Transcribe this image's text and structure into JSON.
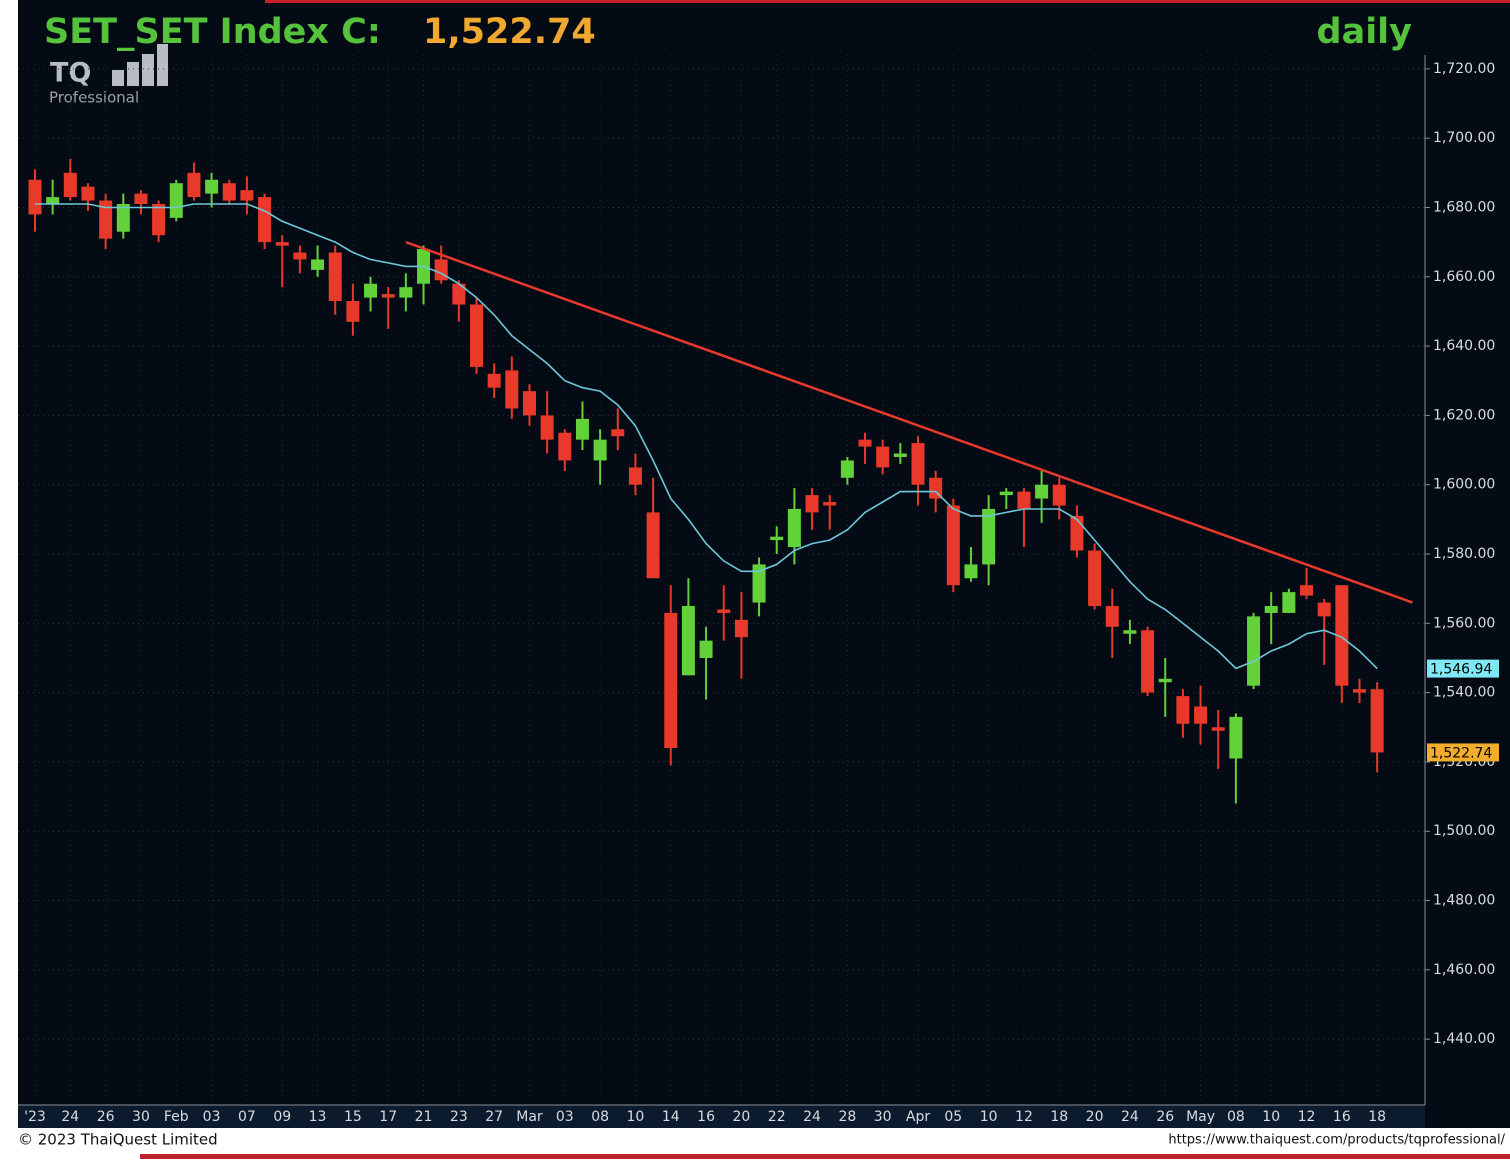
{
  "chart_data": {
    "type": "candlestick",
    "title": "SET_SET Index C:",
    "title_value": "1,522.74",
    "interval": "daily",
    "logo": {
      "text": "TQ",
      "subtitle": "Professional"
    },
    "copyright": "© 2023 ThaiQuest Limited",
    "url": "https://www.thaiquest.com/products/tqprofessional/",
    "categories": [
      "'23",
      null,
      "24",
      null,
      "26",
      null,
      "30",
      null,
      "Feb",
      null,
      "03",
      null,
      "07",
      null,
      "09",
      null,
      "13",
      null,
      "15",
      null,
      "17",
      null,
      "21",
      null,
      "23",
      null,
      "27",
      null,
      "Mar",
      null,
      "03",
      null,
      "08",
      null,
      "10",
      null,
      "14",
      null,
      "16",
      null,
      "20",
      null,
      "22",
      null,
      "24",
      null,
      "28",
      null,
      "30",
      null,
      "Apr",
      null,
      "05",
      null,
      "10",
      null,
      "12",
      null,
      "18",
      null,
      "20",
      null,
      "24",
      null,
      "26",
      null,
      "May",
      null,
      "08",
      null,
      "10",
      null,
      "12",
      null,
      "16",
      null,
      "18",
      null
    ],
    "open": [
      1688,
      1681,
      1690,
      1686,
      1682,
      1673,
      1684,
      1681,
      1677,
      1690,
      1684,
      1687,
      1685,
      1683,
      1670,
      1667,
      1662,
      1667,
      1653,
      1654,
      1655,
      1654,
      1658,
      1665,
      1658,
      1652,
      1632,
      1633,
      1627,
      1620,
      1615,
      1613,
      1607,
      1616,
      1605,
      1592,
      1563,
      1545,
      1550,
      1564,
      1561,
      1566,
      1584,
      1582,
      1597,
      1595,
      1602,
      1613,
      1611,
      1608,
      1612,
      1602,
      1594,
      1573,
      1577,
      1597,
      1598,
      1596,
      1600,
      1591,
      1581,
      1565,
      1557,
      1558,
      1543,
      1539,
      1536,
      1530,
      1521,
      1542,
      1563,
      1563,
      1571,
      1566,
      1571,
      1541,
      1541,
      null
    ],
    "high": [
      1691,
      1688,
      1694,
      1687,
      1684,
      1684,
      1685,
      1682,
      1688,
      1693,
      1690,
      1688,
      1689,
      1684,
      1672,
      1669,
      1669,
      1669,
      1658,
      1660,
      1657,
      1661,
      1669,
      1669,
      1659,
      1654,
      1635,
      1637,
      1629,
      1627,
      1616,
      1624,
      1616,
      1622,
      1609,
      1602,
      1571,
      1573,
      1559,
      1571,
      1569,
      1579,
      1588,
      1599,
      1599,
      1597,
      1608,
      1615,
      1613,
      1612,
      1614,
      1604,
      1596,
      1582,
      1597,
      1599,
      1599,
      1604,
      1602,
      1594,
      1583,
      1570,
      1561,
      1559,
      1550,
      1541,
      1542,
      1535,
      1534,
      1563,
      1569,
      1570,
      1576,
      1567,
      1571,
      1544,
      1543,
      null
    ],
    "low": [
      1673,
      1678,
      1682,
      1679,
      1668,
      1671,
      1678,
      1670,
      1676,
      1682,
      1680,
      1681,
      1678,
      1668,
      1657,
      1661,
      1660,
      1649,
      1643,
      1650,
      1645,
      1650,
      1652,
      1658,
      1647,
      1632,
      1625,
      1619,
      1617,
      1609,
      1604,
      1610,
      1600,
      1610,
      1597,
      1573,
      1519,
      1545,
      1538,
      1555,
      1544,
      1562,
      1580,
      1577,
      1587,
      1587,
      1600,
      1606,
      1603,
      1606,
      1594,
      1592,
      1569,
      1572,
      1571,
      1593,
      1582,
      1589,
      1590,
      1579,
      1564,
      1550,
      1554,
      1539,
      1533,
      1527,
      1525,
      1518,
      1508,
      1541,
      1554,
      1563,
      1567,
      1548,
      1537,
      1537,
      1517,
      null
    ],
    "close": [
      1678,
      1683,
      1683,
      1682,
      1671,
      1681,
      1681,
      1672,
      1687,
      1683,
      1688,
      1682,
      1682,
      1670,
      1669,
      1665,
      1665,
      1653,
      1647,
      1658,
      1654,
      1657,
      1668,
      1659,
      1652,
      1634,
      1628,
      1622,
      1620,
      1613,
      1607,
      1619,
      1613,
      1614,
      1600,
      1573,
      1524,
      1565,
      1555,
      1563,
      1556,
      1577,
      1585,
      1593,
      1592,
      1594,
      1607,
      1611,
      1605,
      1609,
      1600,
      1596,
      1571,
      1577,
      1593,
      1598,
      1593,
      1600,
      1594,
      1581,
      1565,
      1559,
      1558,
      1540,
      1544,
      1531,
      1531,
      1529,
      1533,
      1562,
      1565,
      1569,
      1568,
      1562,
      1542,
      1540,
      1522.74,
      null
    ],
    "up_color": "#62d13a",
    "down_color": "#e8392a",
    "ma": {
      "color": "#6cc8d8",
      "values": [
        1681,
        1681,
        1681,
        1681,
        1680,
        1680,
        1680,
        1680,
        1680,
        1681,
        1681,
        1681,
        1681,
        1679,
        1676,
        1674,
        1672,
        1670,
        1667,
        1665,
        1664,
        1663,
        1663,
        1661,
        1658,
        1654,
        1649,
        1643,
        1639,
        1635,
        1630,
        1628,
        1627,
        1623,
        1617,
        1607,
        1596,
        1590,
        1583,
        1578,
        1575,
        1575,
        1577,
        1581,
        1583,
        1584,
        1587,
        1592,
        1595,
        1598,
        1598,
        1598,
        1593,
        1591,
        1591,
        1592,
        1593,
        1593,
        1593,
        1590,
        1584,
        1578,
        1572,
        1567,
        1564,
        1560,
        1556,
        1552,
        1547,
        1549,
        1552,
        1554,
        1557,
        1558,
        1556,
        1552,
        1546.94,
        null
      ]
    },
    "trendline": {
      "color": "#e8392a",
      "from": {
        "index": 21,
        "value": 1670
      },
      "to": {
        "index": 78,
        "value": 1566
      }
    },
    "price_tags": [
      {
        "value": 1546.94,
        "label": "1,546.94",
        "color": "#7fe8f4"
      },
      {
        "value": 1522.74,
        "label": "1,522.74",
        "color": "#f2ad2c"
      }
    ],
    "ylim": [
      1421,
      1724
    ],
    "yticks": [
      {
        "value": 1440,
        "label": "1,440.00"
      },
      {
        "value": 1460,
        "label": "1,460.00"
      },
      {
        "value": 1480,
        "label": "1,480.00"
      },
      {
        "value": 1500,
        "label": "1,500.00"
      },
      {
        "value": 1520,
        "label": "1,520.00"
      },
      {
        "value": 1540,
        "label": "1,540.00"
      },
      {
        "value": 1560,
        "label": "1,560.00"
      },
      {
        "value": 1580,
        "label": "1,580.00"
      },
      {
        "value": 1600,
        "label": "1,600.00"
      },
      {
        "value": 1620,
        "label": "1,620.00"
      },
      {
        "value": 1640,
        "label": "1,640.00"
      },
      {
        "value": 1660,
        "label": "1,660.00"
      },
      {
        "value": 1680,
        "label": "1,680.00"
      },
      {
        "value": 1700,
        "label": "1,700.00"
      },
      {
        "value": 1720,
        "label": "1,720.00"
      }
    ],
    "grid": true
  }
}
